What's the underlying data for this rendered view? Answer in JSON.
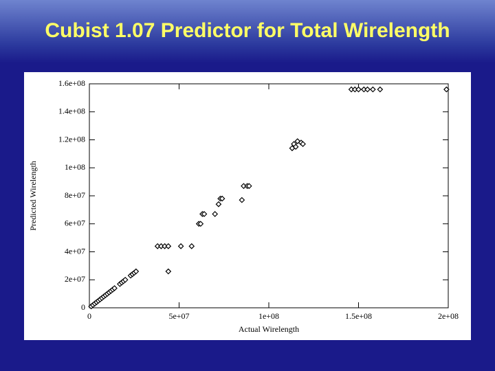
{
  "chart_data": {
    "type": "scatter",
    "title": "Cubist 1.07 Predictor for Total Wirelength",
    "x_label": "Actual Wirelength",
    "y_label": "Predicted Wirelength",
    "xlim": [
      0,
      200000000
    ],
    "ylim": [
      0,
      160000000
    ],
    "xticks": [
      0,
      {
        "value": 50000000,
        "label": "5e+07"
      },
      {
        "value": 100000000,
        "label": "1e+08"
      },
      {
        "value": 150000000,
        "label": "1.5e+08"
      },
      {
        "value": 200000000,
        "label": "2e+08"
      }
    ],
    "yticks": [
      0,
      {
        "value": 20000000,
        "label": "2e+07"
      },
      {
        "value": 40000000,
        "label": "4e+07"
      },
      {
        "value": 60000000,
        "label": "6e+07"
      },
      {
        "value": 80000000,
        "label": "8e+07"
      },
      {
        "value": 100000000,
        "label": "1e+08"
      },
      {
        "value": 120000000,
        "label": "1.2e+08"
      },
      {
        "value": 140000000,
        "label": "1.4e+08"
      },
      {
        "value": 160000000,
        "label": "1.6e+08"
      }
    ],
    "color": "#000000",
    "x": [
      1000000,
      2000000,
      3000000,
      4000000,
      5000000,
      6000000,
      7000000,
      8000000,
      9000000,
      10000000,
      11000000,
      12000000,
      13000000,
      14000000,
      17000000,
      18000000,
      19000000,
      20000000,
      23000000,
      24000000,
      25000000,
      26000000,
      38000000,
      40000000,
      42000000,
      44000000,
      51000000,
      57000000,
      44000000,
      61000000,
      62000000,
      63000000,
      64000000,
      70000000,
      72000000,
      73000000,
      74000000,
      85000000,
      86000000,
      88000000,
      89000000,
      113000000,
      114000000,
      115000000,
      116000000,
      118000000,
      119000000,
      146000000,
      148000000,
      150000000,
      153000000,
      155000000,
      158000000,
      162000000,
      199000000
    ],
    "y": [
      1000000,
      2000000,
      3000000,
      4000000,
      5000000,
      6000000,
      7000000,
      8000000,
      9000000,
      10000000,
      11000000,
      12000000,
      13000000,
      14000000,
      17000000,
      18000000,
      19000000,
      20000000,
      23000000,
      24000000,
      25000000,
      26000000,
      44000000,
      44000000,
      44000000,
      44000000,
      44000000,
      44000000,
      26000000,
      60000000,
      60000000,
      67000000,
      67000000,
      67000000,
      74000000,
      78000000,
      78000000,
      77000000,
      87000000,
      87000000,
      87000000,
      114000000,
      117000000,
      115000000,
      119000000,
      118000000,
      117000000,
      156000000,
      156000000,
      156000000,
      156000000,
      156000000,
      156000000,
      156000000,
      156000000
    ]
  }
}
